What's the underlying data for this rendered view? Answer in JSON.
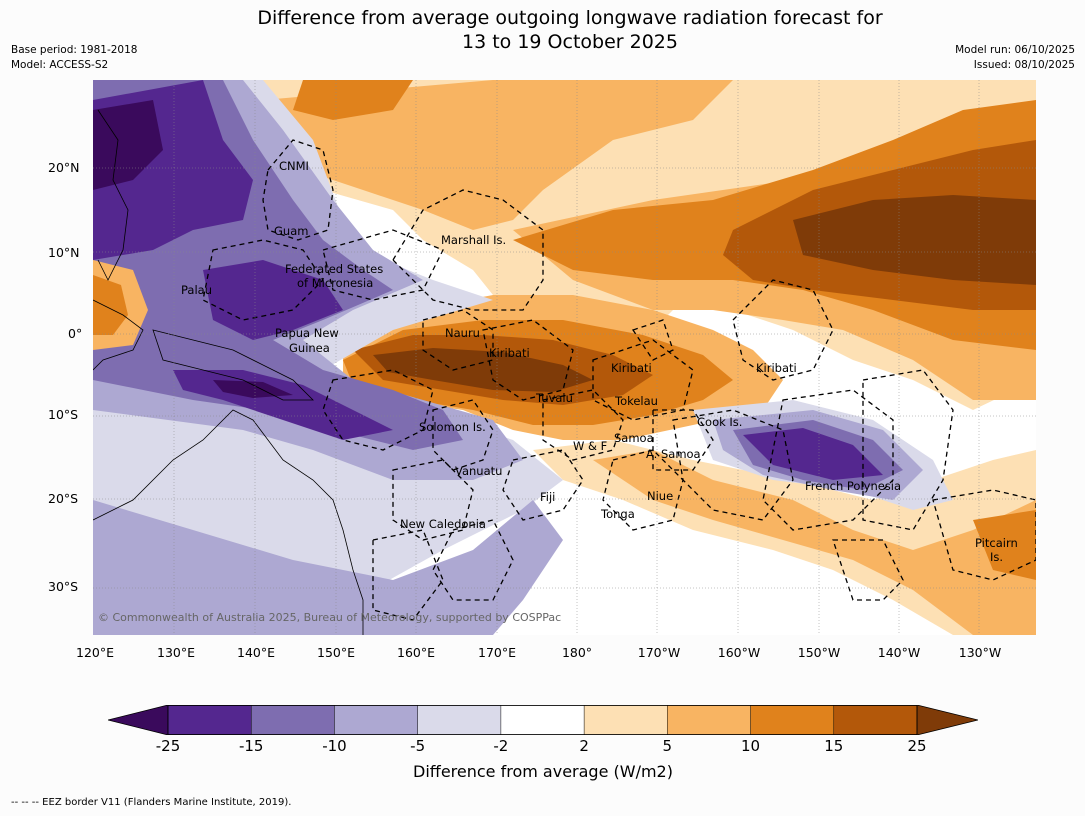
{
  "title": "Difference from average outgoing longwave radiation forecast for 13 to 19 October 2025",
  "title_line1": "Difference from average outgoing longwave radiation forecast for",
  "title_line2": "13 to 19 October 2025",
  "base_period": "Base period: 1981-2018",
  "model": "Model: ACCESS-S2",
  "model_run": "Model run: 06/10/2025",
  "issued": "Issued: 08/10/2025",
  "latitude_labels": [
    "20°N",
    "10°N",
    "0°",
    "10°S",
    "20°S",
    "30°S"
  ],
  "longitude_labels": [
    "120°E",
    "130°E",
    "140°E",
    "150°E",
    "160°E",
    "170°E",
    "180°",
    "170°W",
    "160°W",
    "150°W",
    "140°W",
    "130°W"
  ],
  "places": {
    "cnmi": "CNMI",
    "guam": "Guam",
    "marshall": "Marshall Is.",
    "fsm1": "Federated States",
    "fsm2": "of Micronesia",
    "palau": "Palau",
    "png1": "Papua New",
    "png2": "Guinea",
    "nauru": "Nauru",
    "kiribati_w": "Kiribati",
    "kiribati_c": "Kiribati",
    "kiribati_e": "Kiribati",
    "tuvalu": "Tuvalu",
    "tokelau": "Tokelau",
    "solomon": "Solomon Is.",
    "samoa": "Samoa",
    "wf": "W & F",
    "asamoa": "A. Samoa",
    "cook": "Cook Is.",
    "vanuatu": "Vanuatu",
    "fiji": "Fiji",
    "niue": "Niue",
    "tonga": "Tonga",
    "french_polynesia": "French Polynesia",
    "new_caledonia": "New Caledonia",
    "pitcairn1": "Pitcairn",
    "pitcairn2": "Is."
  },
  "copyright": "© Commonwealth of Australia 2025, Bureau of Meteorology, supported by COSPPac",
  "colorbar": {
    "labels": [
      "-25",
      "-15",
      "-10",
      "-5",
      "-2",
      "2",
      "5",
      "10",
      "15",
      "25"
    ],
    "colors": [
      "#3a0a5c",
      "#54278f",
      "#7e6db0",
      "#ada8d2",
      "#dadaea",
      "#ffffff",
      "#fde0b4",
      "#f8b462",
      "#e0821c",
      "#b3580a",
      "#7f3b08"
    ],
    "title": "Difference from average (W/m2)"
  },
  "footer": "-- -- -- EEZ border V11 (Flanders Marine Institute, 2019)."
}
